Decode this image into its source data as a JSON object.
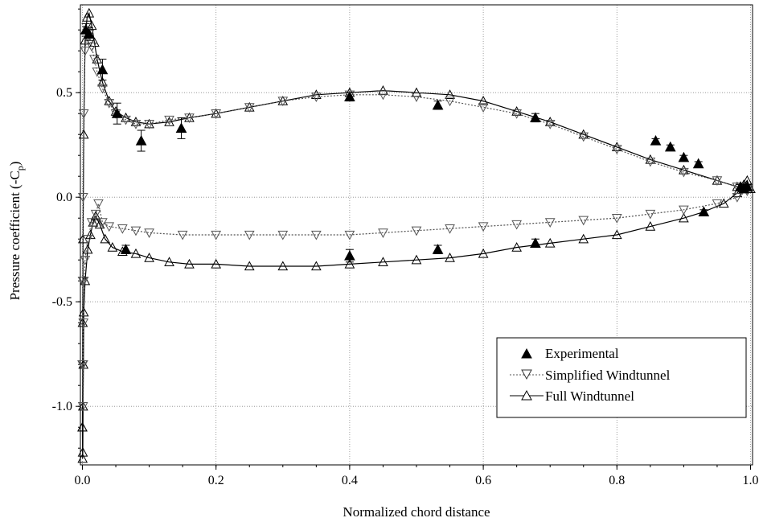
{
  "chart_data": {
    "type": "line",
    "title": "",
    "xlabel": "Normalized chord distance",
    "ylabel": "Pressure coefficient (-C",
    "ylabel_sub": "p",
    "ylabel_close": ")",
    "xlim": [
      -0.003,
      1.003
    ],
    "ylim": [
      -1.28,
      0.92
    ],
    "grid": true,
    "legend_position": "lower-right",
    "x_ticks": [
      {
        "value": 0.0,
        "label": "0.0"
      },
      {
        "value": 0.2,
        "label": "0.2"
      },
      {
        "value": 0.4,
        "label": "0.4"
      },
      {
        "value": 0.6,
        "label": "0.6"
      },
      {
        "value": 0.8,
        "label": "0.8"
      },
      {
        "value": 1.0,
        "label": "1.0"
      }
    ],
    "y_ticks": [
      {
        "value": 0.5,
        "label": "0.5"
      },
      {
        "value": 0.0,
        "label": "0.0"
      },
      {
        "value": -0.5,
        "label": "-0.5"
      },
      {
        "value": -1.0,
        "label": "-1.0"
      }
    ],
    "series": [
      {
        "name": "Experimental",
        "marker": "triangle-up-filled",
        "line": "none",
        "color": "#000000",
        "points": [
          {
            "x": 0.005,
            "y": 0.8,
            "err": 0.03
          },
          {
            "x": 0.01,
            "y": 0.78,
            "err": 0.03
          },
          {
            "x": 0.03,
            "y": 0.61,
            "err": 0.05
          },
          {
            "x": 0.052,
            "y": 0.4,
            "err": 0.05
          },
          {
            "x": 0.065,
            "y": -0.25,
            "err": 0.02
          },
          {
            "x": 0.088,
            "y": 0.27,
            "err": 0.05
          },
          {
            "x": 0.148,
            "y": 0.33,
            "err": 0.05
          },
          {
            "x": 0.4,
            "y": 0.48,
            "err": 0.02
          },
          {
            "x": 0.4,
            "y": -0.28,
            "err": 0.03
          },
          {
            "x": 0.532,
            "y": 0.44,
            "err": 0.02
          },
          {
            "x": 0.532,
            "y": -0.25,
            "err": 0.02
          },
          {
            "x": 0.678,
            "y": 0.38,
            "err": 0.02
          },
          {
            "x": 0.678,
            "y": -0.22,
            "err": 0.02
          },
          {
            "x": 0.858,
            "y": 0.27,
            "err": 0.01
          },
          {
            "x": 0.88,
            "y": 0.24,
            "err": 0.01
          },
          {
            "x": 0.9,
            "y": 0.19,
            "err": 0.01
          },
          {
            "x": 0.922,
            "y": 0.16,
            "err": 0.01
          },
          {
            "x": 0.93,
            "y": -0.07,
            "err": 0.01
          },
          {
            "x": 0.985,
            "y": 0.05,
            "err": 0.01
          },
          {
            "x": 0.99,
            "y": 0.04,
            "err": 0.01
          },
          {
            "x": 0.995,
            "y": 0.05,
            "err": 0.01
          }
        ]
      },
      {
        "name": "Simplified Windtunnel",
        "marker": "triangle-down-open",
        "line": "dotted",
        "color": "#555555",
        "upper": [
          [
            0.0,
            -0.8
          ],
          [
            0.0005,
            -0.4
          ],
          [
            0.001,
            0.0
          ],
          [
            0.002,
            0.4
          ],
          [
            0.004,
            0.7
          ],
          [
            0.007,
            0.8
          ],
          [
            0.01,
            0.78
          ],
          [
            0.014,
            0.72
          ],
          [
            0.018,
            0.66
          ],
          [
            0.022,
            0.6
          ],
          [
            0.03,
            0.52
          ],
          [
            0.04,
            0.45
          ],
          [
            0.05,
            0.4
          ],
          [
            0.065,
            0.37
          ],
          [
            0.08,
            0.35
          ],
          [
            0.1,
            0.35
          ],
          [
            0.13,
            0.37
          ],
          [
            0.16,
            0.38
          ],
          [
            0.2,
            0.4
          ],
          [
            0.25,
            0.43
          ],
          [
            0.3,
            0.46
          ],
          [
            0.35,
            0.48
          ],
          [
            0.4,
            0.49
          ],
          [
            0.45,
            0.49
          ],
          [
            0.5,
            0.48
          ],
          [
            0.55,
            0.46
          ],
          [
            0.6,
            0.43
          ],
          [
            0.65,
            0.4
          ],
          [
            0.7,
            0.35
          ],
          [
            0.75,
            0.29
          ],
          [
            0.8,
            0.23
          ],
          [
            0.85,
            0.17
          ],
          [
            0.9,
            0.12
          ],
          [
            0.95,
            0.08
          ],
          [
            0.98,
            0.05
          ],
          [
            0.995,
            0.04
          ]
        ],
        "lower": [
          [
            0.0,
            -0.8
          ],
          [
            0.0008,
            -1.0
          ],
          [
            0.001,
            -0.8
          ],
          [
            0.0015,
            -0.6
          ],
          [
            0.002,
            -0.4
          ],
          [
            0.004,
            -0.3
          ],
          [
            0.008,
            -0.2
          ],
          [
            0.014,
            -0.12
          ],
          [
            0.02,
            -0.08
          ],
          [
            0.024,
            -0.03
          ],
          [
            0.03,
            -0.12
          ],
          [
            0.04,
            -0.14
          ],
          [
            0.06,
            -0.15
          ],
          [
            0.08,
            -0.16
          ],
          [
            0.1,
            -0.17
          ],
          [
            0.15,
            -0.18
          ],
          [
            0.2,
            -0.18
          ],
          [
            0.25,
            -0.18
          ],
          [
            0.3,
            -0.18
          ],
          [
            0.35,
            -0.18
          ],
          [
            0.4,
            -0.18
          ],
          [
            0.45,
            -0.17
          ],
          [
            0.5,
            -0.16
          ],
          [
            0.55,
            -0.15
          ],
          [
            0.6,
            -0.14
          ],
          [
            0.65,
            -0.13
          ],
          [
            0.7,
            -0.12
          ],
          [
            0.75,
            -0.11
          ],
          [
            0.8,
            -0.1
          ],
          [
            0.85,
            -0.08
          ],
          [
            0.9,
            -0.06
          ],
          [
            0.95,
            -0.03
          ],
          [
            0.98,
            0.0
          ],
          [
            0.995,
            0.03
          ]
        ]
      },
      {
        "name": "Full Windtunnel",
        "marker": "triangle-up-open",
        "line": "solid",
        "color": "#000000",
        "upper": [
          [
            0.0,
            -1.1
          ],
          [
            0.0005,
            -0.6
          ],
          [
            0.001,
            -0.2
          ],
          [
            0.002,
            0.3
          ],
          [
            0.004,
            0.75
          ],
          [
            0.007,
            0.86
          ],
          [
            0.01,
            0.88
          ],
          [
            0.014,
            0.82
          ],
          [
            0.018,
            0.74
          ],
          [
            0.022,
            0.66
          ],
          [
            0.03,
            0.55
          ],
          [
            0.04,
            0.46
          ],
          [
            0.05,
            0.41
          ],
          [
            0.065,
            0.38
          ],
          [
            0.08,
            0.36
          ],
          [
            0.1,
            0.35
          ],
          [
            0.13,
            0.36
          ],
          [
            0.16,
            0.38
          ],
          [
            0.2,
            0.4
          ],
          [
            0.25,
            0.43
          ],
          [
            0.3,
            0.46
          ],
          [
            0.35,
            0.49
          ],
          [
            0.4,
            0.5
          ],
          [
            0.45,
            0.51
          ],
          [
            0.5,
            0.5
          ],
          [
            0.55,
            0.49
          ],
          [
            0.6,
            0.46
          ],
          [
            0.65,
            0.41
          ],
          [
            0.7,
            0.36
          ],
          [
            0.75,
            0.3
          ],
          [
            0.8,
            0.24
          ],
          [
            0.85,
            0.18
          ],
          [
            0.9,
            0.13
          ],
          [
            0.95,
            0.08
          ],
          [
            0.98,
            0.05
          ],
          [
            0.995,
            0.04
          ]
        ],
        "lower": [
          [
            0.0,
            -1.1
          ],
          [
            0.0003,
            -1.25
          ],
          [
            0.0006,
            -1.22
          ],
          [
            0.001,
            -1.0
          ],
          [
            0.0015,
            -0.8
          ],
          [
            0.002,
            -0.55
          ],
          [
            0.004,
            -0.4
          ],
          [
            0.008,
            -0.25
          ],
          [
            0.012,
            -0.18
          ],
          [
            0.016,
            -0.12
          ],
          [
            0.02,
            -0.09
          ],
          [
            0.026,
            -0.13
          ],
          [
            0.034,
            -0.2
          ],
          [
            0.045,
            -0.24
          ],
          [
            0.06,
            -0.26
          ],
          [
            0.08,
            -0.27
          ],
          [
            0.1,
            -0.29
          ],
          [
            0.13,
            -0.31
          ],
          [
            0.16,
            -0.32
          ],
          [
            0.2,
            -0.32
          ],
          [
            0.25,
            -0.33
          ],
          [
            0.3,
            -0.33
          ],
          [
            0.35,
            -0.33
          ],
          [
            0.4,
            -0.32
          ],
          [
            0.45,
            -0.31
          ],
          [
            0.5,
            -0.3
          ],
          [
            0.55,
            -0.29
          ],
          [
            0.6,
            -0.27
          ],
          [
            0.65,
            -0.24
          ],
          [
            0.7,
            -0.22
          ],
          [
            0.75,
            -0.2
          ],
          [
            0.8,
            -0.18
          ],
          [
            0.85,
            -0.14
          ],
          [
            0.9,
            -0.1
          ],
          [
            0.93,
            -0.07
          ],
          [
            0.96,
            -0.03
          ],
          [
            0.98,
            0.02
          ],
          [
            0.99,
            0.06
          ],
          [
            0.995,
            0.08
          ],
          [
            1.0,
            0.04
          ]
        ]
      }
    ]
  }
}
